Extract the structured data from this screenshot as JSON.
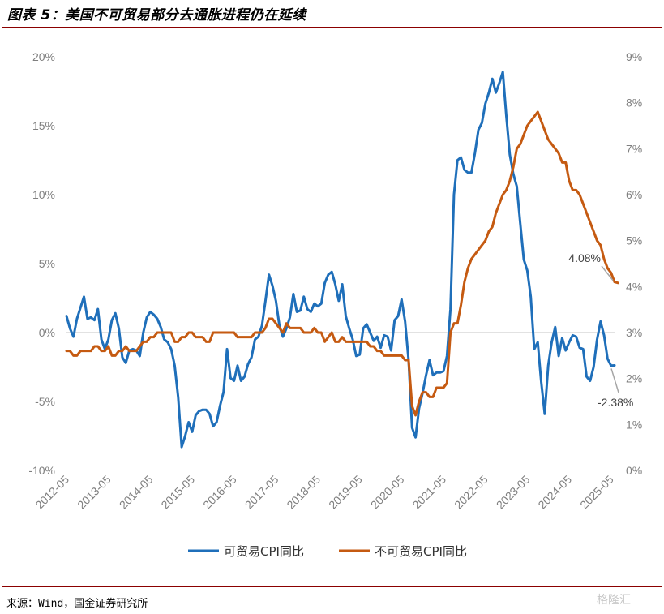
{
  "title": "图表 5：美国不可贸易部分去通胀进程仍在延续",
  "source": "来源：Wind，国金证券研究所",
  "watermark": "格隆汇",
  "chart_data": {
    "type": "line",
    "x_tick_labels": [
      "2012-05",
      "2013-05",
      "2014-05",
      "2015-05",
      "2016-05",
      "2017-05",
      "2018-05",
      "2019-05",
      "2020-05",
      "2021-05",
      "2022-05",
      "2023-05",
      "2024-05",
      "2025-05"
    ],
    "left_axis": {
      "range": [
        -10,
        20
      ],
      "ticks": [
        -10,
        -5,
        0,
        5,
        10,
        15,
        20
      ],
      "tick_labels": [
        "-10%",
        "-5%",
        "0%",
        "5%",
        "10%",
        "15%",
        "20%"
      ]
    },
    "right_axis": {
      "range": [
        0,
        9
      ],
      "ticks": [
        0,
        1,
        2,
        3,
        4,
        5,
        6,
        7,
        8,
        9
      ],
      "tick_labels": [
        "0%",
        "1%",
        "2%",
        "3%",
        "4%",
        "5%",
        "6%",
        "7%",
        "8%",
        "9%"
      ]
    },
    "grid": false,
    "legend_position": "bottom",
    "series": [
      {
        "name": "可贸易CPI同比",
        "axis": "left",
        "color": "#1f6fba",
        "start": "2012-05",
        "values": [
          1.2,
          0.3,
          -0.3,
          1.0,
          1.8,
          2.6,
          1.0,
          1.1,
          0.9,
          1.7,
          -0.5,
          -1.2,
          -0.5,
          0.9,
          1.4,
          0.3,
          -1.8,
          -2.2,
          -1.3,
          -1.2,
          -1.3,
          -1.7,
          0.0,
          1.1,
          1.5,
          1.3,
          1.0,
          0.4,
          -0.5,
          -0.7,
          -1.2,
          -2.4,
          -4.7,
          -8.3,
          -7.5,
          -6.5,
          -7.2,
          -6.0,
          -5.7,
          -5.6,
          -5.6,
          -5.9,
          -6.8,
          -6.5,
          -5.3,
          -4.3,
          -1.2,
          -3.3,
          -3.5,
          -2.4,
          -3.5,
          -3.2,
          -2.3,
          -1.8,
          -0.5,
          -0.3,
          0.5,
          2.3,
          4.2,
          3.4,
          2.3,
          0.5,
          -0.3,
          0.3,
          1.1,
          2.8,
          1.5,
          1.6,
          2.6,
          1.7,
          1.5,
          2.1,
          1.9,
          2.1,
          3.6,
          4.2,
          4.4,
          3.5,
          2.3,
          3.5,
          1.2,
          0.3,
          -0.5,
          -1.7,
          -1.6,
          0.3,
          0.6,
          0.0,
          -0.6,
          -0.3,
          -1.1,
          -0.2,
          -0.3,
          -1.3,
          0.9,
          1.2,
          2.4,
          0.8,
          -2.0,
          -6.9,
          -7.6,
          -5.5,
          -4.4,
          -3.1,
          -2.0,
          -3.1,
          -2.9,
          -2.9,
          -2.8,
          -1.7,
          1.7,
          10.0,
          12.5,
          12.7,
          11.8,
          11.6,
          11.6,
          13.0,
          14.7,
          15.2,
          16.6,
          17.4,
          18.4,
          17.4,
          18.1,
          18.9,
          15.7,
          12.9,
          11.5,
          10.6,
          7.9,
          5.3,
          4.5,
          2.6,
          -1.2,
          -0.7,
          -3.6,
          -5.9,
          -2.4,
          -0.7,
          0.4,
          -1.7,
          -0.4,
          -1.3,
          -0.7,
          -0.2,
          -0.3,
          -1.1,
          -1.2,
          -3.2,
          -3.5,
          -2.5,
          -0.5,
          0.8,
          -0.2,
          -1.9,
          -2.4,
          -2.38
        ],
        "end_label": "-2.38%"
      },
      {
        "name": "不可贸易CPI同比",
        "axis": "right",
        "color": "#c55a11",
        "start": "2012-05",
        "values": [
          2.6,
          2.6,
          2.5,
          2.5,
          2.6,
          2.6,
          2.6,
          2.6,
          2.7,
          2.7,
          2.6,
          2.6,
          2.7,
          2.5,
          2.5,
          2.6,
          2.6,
          2.7,
          2.6,
          2.6,
          2.6,
          2.7,
          2.8,
          2.8,
          2.9,
          2.9,
          3.0,
          3.0,
          3.0,
          3.0,
          3.0,
          2.8,
          2.8,
          2.9,
          2.9,
          3.0,
          3.0,
          2.9,
          2.9,
          2.9,
          2.8,
          2.8,
          3.0,
          3.0,
          3.0,
          3.0,
          3.0,
          3.0,
          3.0,
          2.9,
          2.9,
          2.9,
          2.9,
          2.9,
          3.0,
          3.0,
          3.0,
          3.1,
          3.3,
          3.3,
          3.2,
          3.1,
          3.0,
          3.2,
          3.1,
          3.1,
          3.1,
          3.1,
          3.0,
          3.0,
          3.0,
          3.1,
          3.0,
          3.0,
          2.8,
          2.9,
          3.0,
          2.8,
          2.8,
          2.9,
          2.8,
          2.8,
          2.8,
          2.8,
          2.8,
          2.8,
          2.8,
          2.7,
          2.7,
          2.6,
          2.6,
          2.5,
          2.5,
          2.5,
          2.5,
          2.5,
          2.5,
          2.4,
          2.4,
          1.4,
          1.2,
          1.5,
          1.7,
          1.7,
          1.6,
          1.6,
          1.8,
          1.8,
          1.8,
          1.9,
          3.0,
          3.2,
          3.2,
          3.6,
          4.1,
          4.4,
          4.6,
          4.7,
          4.8,
          4.9,
          5.0,
          5.2,
          5.3,
          5.6,
          5.8,
          6.0,
          6.1,
          6.3,
          6.6,
          7.0,
          7.1,
          7.3,
          7.5,
          7.6,
          7.7,
          7.8,
          7.6,
          7.4,
          7.2,
          7.1,
          7.0,
          6.9,
          6.7,
          6.7,
          6.3,
          6.1,
          6.1,
          6.0,
          5.8,
          5.6,
          5.4,
          5.2,
          5.0,
          4.9,
          4.6,
          4.4,
          4.3,
          4.1,
          4.08
        ],
        "end_label": "4.08%"
      }
    ]
  }
}
